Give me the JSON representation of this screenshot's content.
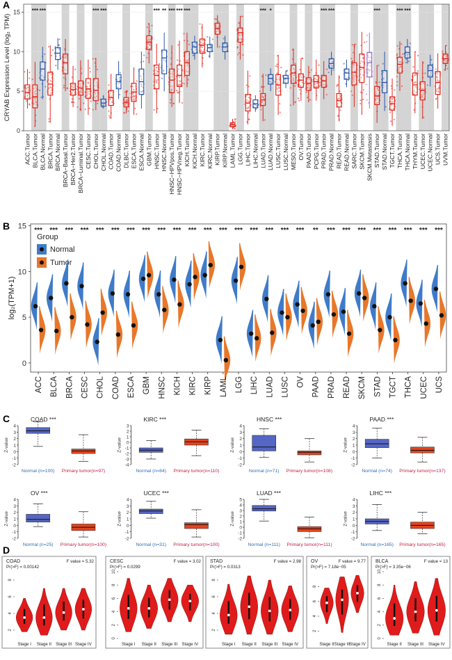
{
  "figure": {
    "panel_labels": [
      "A",
      "B",
      "C",
      "D"
    ]
  },
  "colors": {
    "normal_blue": "#2a56a8",
    "tumor_red": "#e0261b",
    "metastasis_purple": "#9a6fc4",
    "b_normal": "#3f7bc8",
    "b_tumor": "#e8772a",
    "c_normal": "#5566c4",
    "c_tumor": "#e4431f",
    "violin_red": "#e01b1b",
    "sig_text": "#222222",
    "grey_band": "#d4d4d4"
  },
  "chart_data": [
    {
      "panel": "A",
      "type": "box",
      "ylabel": "CRYAB Expression Level (log₂ TPM)",
      "ylim": [
        0,
        16
      ],
      "yticks": [
        0,
        5,
        10,
        15
      ],
      "categories": [
        "ACC.Tumor",
        "BLCA.Tumor",
        "BLCA.Normal",
        "BRCA.Tumor",
        "BRCA.Normal",
        "BRCA−Basal.Tumor",
        "BRCA−Her2.Tumor",
        "BRCA−Luminal.Tumor",
        "CESC.Tumor",
        "CHOL.Tumor",
        "CHOL.Normal",
        "COAD.Tumor",
        "COAD.Normal",
        "DLBC.Tumor",
        "ESCA.Tumor",
        "ESCA.Normal",
        "GBM.Tumor",
        "HNSC.Tumor",
        "HNSC.Normal",
        "HNSC−HPVpos.Tumor",
        "HNSC−HPVneg.Tumor",
        "KICH.Tumor",
        "KICH.Normal",
        "KIRC.Tumor",
        "KIRC.Normal",
        "KIRP.Tumor",
        "KIRP.Normal",
        "LAML.Tumor",
        "LGG.Tumor",
        "LIHC.Tumor",
        "LIHC.Normal",
        "LUAD.Tumor",
        "LUAD.Normal",
        "LUSC.Tumor",
        "LUSC.Normal",
        "MESO.Tumor",
        "OV.Tumor",
        "PAAD.Tumor",
        "PCPG.Tumor",
        "PRAD.Tumor",
        "PRAD.Normal",
        "READ.Tumor",
        "READ.Normal",
        "SARC.Tumor",
        "SKCM.Tumor",
        "SKCM.Metastasis",
        "STAD.Tumor",
        "STAD.Normal",
        "TGCT.Tumor",
        "THCA.Tumor",
        "THCA.Normal",
        "THYM.Tumor",
        "UCEC.Tumor",
        "UCEC.Normal",
        "UCS.Tumor",
        "UVM.Tumor"
      ],
      "group": [
        "t",
        "t",
        "n",
        "t",
        "n",
        "t",
        "t",
        "t",
        "t",
        "t",
        "n",
        "t",
        "n",
        "t",
        "t",
        "n",
        "t",
        "t",
        "n",
        "t",
        "t",
        "t",
        "n",
        "t",
        "n",
        "t",
        "n",
        "t",
        "t",
        "t",
        "n",
        "t",
        "n",
        "t",
        "n",
        "t",
        "t",
        "t",
        "t",
        "t",
        "n",
        "t",
        "n",
        "t",
        "t",
        "m",
        "t",
        "n",
        "t",
        "t",
        "n",
        "t",
        "t",
        "n",
        "t",
        "t"
      ],
      "medians": [
        4.8,
        4.3,
        7.8,
        5.9,
        9.8,
        8.6,
        5.2,
        5.4,
        5.3,
        5.1,
        3.5,
        4.2,
        6.2,
        3.6,
        4.9,
        6.2,
        11.2,
        7.0,
        9.2,
        6.4,
        7.0,
        8.6,
        10.6,
        10.8,
        10.5,
        12.9,
        10.6,
        0.8,
        12.4,
        3.5,
        3.4,
        3.9,
        6.6,
        5.8,
        6.6,
        7.3,
        6.4,
        6.0,
        6.2,
        6.3,
        8.5,
        3.8,
        7.3,
        7.4,
        8.0,
        8.6,
        4.4,
        6.1,
        3.4,
        8.4,
        9.9,
        5.8,
        5.1,
        7.6,
        6.1,
        9.1
      ],
      "q1": [
        4.0,
        2.9,
        6.4,
        4.5,
        9.0,
        7.2,
        4.5,
        4.5,
        4.1,
        3.8,
        3.1,
        3.2,
        5.3,
        3.0,
        3.7,
        4.6,
        10.3,
        5.3,
        7.2,
        4.8,
        5.6,
        7.0,
        9.8,
        9.8,
        10.0,
        12.2,
        10.0,
        0.5,
        11.2,
        2.5,
        2.9,
        3.2,
        5.9,
        4.5,
        6.0,
        6.0,
        5.5,
        5.1,
        5.4,
        5.5,
        7.9,
        3.0,
        6.5,
        5.8,
        6.1,
        6.8,
        3.3,
        4.8,
        2.6,
        7.3,
        9.2,
        4.5,
        3.9,
        6.8,
        4.6,
        8.5
      ],
      "q3": [
        5.8,
        5.8,
        8.7,
        7.4,
        10.5,
        9.7,
        6.0,
        6.3,
        6.6,
        6.6,
        4.0,
        5.1,
        7.1,
        4.2,
        6.0,
        7.8,
        12.0,
        8.3,
        10.2,
        7.8,
        8.3,
        10.0,
        11.2,
        11.6,
        10.9,
        13.6,
        11.1,
        1.0,
        13.0,
        4.6,
        3.9,
        4.7,
        7.1,
        7.1,
        7.0,
        8.3,
        7.2,
        6.7,
        7.0,
        7.0,
        9.1,
        4.7,
        7.8,
        8.6,
        9.7,
        9.9,
        5.6,
        7.6,
        4.3,
        9.3,
        10.6,
        7.3,
        6.2,
        8.3,
        7.5,
        9.7
      ],
      "lo": [
        2.8,
        0.5,
        4.0,
        1.0,
        7.7,
        5.0,
        3.0,
        2.5,
        2.0,
        2.6,
        2.8,
        1.5,
        4.0,
        2.2,
        2.0,
        2.8,
        8.5,
        2.2,
        5.0,
        3.0,
        3.5,
        5.5,
        9.0,
        8.0,
        9.2,
        10.5,
        9.0,
        0.2,
        9.0,
        0.8,
        2.4,
        1.2,
        5.0,
        2.0,
        5.4,
        3.2,
        3.8,
        3.6,
        3.8,
        4.0,
        7.0,
        1.2,
        5.5,
        3.0,
        2.0,
        2.8,
        1.0,
        2.5,
        0.6,
        5.0,
        8.5,
        2.2,
        1.5,
        5.6,
        2.8,
        7.6
      ],
      "hi": [
        7.8,
        8.7,
        10.6,
        10.8,
        11.7,
        11.6,
        8.2,
        8.9,
        9.0,
        9.2,
        4.5,
        7.2,
        8.8,
        5.1,
        8.0,
        10.0,
        13.6,
        11.0,
        12.4,
        10.8,
        11.4,
        12.4,
        12.0,
        13.5,
        11.9,
        14.6,
        12.0,
        1.5,
        14.5,
        7.6,
        4.5,
        7.2,
        7.9,
        9.6,
        7.6,
        10.4,
        9.2,
        8.2,
        9.0,
        8.8,
        10.0,
        7.0,
        9.0,
        11.0,
        12.5,
        12.4,
        8.3,
        10.0,
        6.6,
        11.3,
        11.6,
        10.0,
        8.8,
        9.6,
        9.8,
        10.8
      ],
      "significance": [
        "",
        "***",
        "***",
        "",
        "",
        "",
        "",
        "",
        "",
        "***",
        "***",
        "",
        "",
        "",
        "",
        "",
        "",
        "***",
        "**",
        "***",
        "***",
        "***",
        "",
        "",
        "",
        "",
        "",
        "",
        "",
        "",
        "",
        "***",
        "*",
        "",
        "",
        "",
        "",
        "",
        "",
        "***",
        "***",
        "",
        "",
        "",
        "",
        "",
        "***",
        "",
        "",
        "***",
        "***",
        "",
        "",
        "",
        "",
        ""
      ]
    },
    {
      "panel": "B",
      "type": "split-violin",
      "ylabel": "log₂(TPM+1)",
      "ylim": [
        -1,
        15.2
      ],
      "yticks": [
        0,
        5,
        10,
        15
      ],
      "legend_title": "Group",
      "legend": [
        "Normal",
        "Tumor"
      ],
      "categories": [
        "ACC",
        "BLCA",
        "BRCA",
        "CESC",
        "CHOL",
        "COAD",
        "ESCA",
        "GBM",
        "HNSC",
        "KICH",
        "KIRC",
        "KIRP",
        "LAML",
        "LGG",
        "LIHC",
        "LUAD",
        "LUSC",
        "OV",
        "PAAD",
        "PRAD",
        "READ",
        "SKCM",
        "STAD",
        "TGCT",
        "THCA",
        "UCEC",
        "UCS"
      ],
      "normal_mean": [
        6.2,
        7.1,
        8.7,
        8.4,
        2.3,
        7.6,
        7.5,
        9.2,
        7.5,
        9.1,
        8.6,
        9.6,
        2.5,
        9.0,
        3.2,
        7.0,
        5.5,
        6.4,
        4.1,
        7.5,
        5.6,
        7.6,
        6.2,
        5.0,
        8.7,
        6.5,
        8.1
      ],
      "tumor_mean": [
        3.6,
        3.5,
        5.0,
        4.2,
        5.5,
        3.1,
        4.1,
        9.6,
        5.8,
        6.4,
        9.4,
        10.7,
        0.3,
        10.5,
        2.7,
        3.3,
        5.0,
        5.7,
        4.5,
        5.3,
        3.2,
        7.1,
        3.6,
        2.5,
        6.8,
        4.3,
        5.2
      ],
      "significance": [
        "***",
        "***",
        "***",
        "***",
        "***",
        "***",
        "***",
        "***",
        "***",
        "***",
        "***",
        "***",
        "***",
        "***",
        "***",
        "***",
        "***",
        "***",
        "**",
        "***",
        "***",
        "***",
        "***",
        "***",
        "***",
        "***",
        "***"
      ]
    },
    {
      "panel": "C",
      "type": "box",
      "ylabel": "Z-value",
      "charts": [
        {
          "title": "COAD ***",
          "ylim": [
            -2,
            4
          ],
          "yticks": [
            -2,
            -1,
            0,
            1,
            2,
            3,
            4
          ],
          "groups": [
            "Normal (n=100)",
            "Primary tumor(n=97)"
          ],
          "boxes": [
            [
              0.8,
              2.8,
              3.2,
              3.7,
              4.6
            ],
            [
              -1.5,
              -0.3,
              0.1,
              0.4,
              2.6
            ]
          ]
        },
        {
          "title": "KIRC ***",
          "ylim": [
            -4,
            3
          ],
          "yticks": [
            -4,
            -3,
            -2,
            -1,
            0,
            1,
            2,
            3
          ],
          "groups": [
            "Normal (n=84)",
            "Primary tumor(n=110)"
          ],
          "boxes": [
            [
              -3.0,
              -1.8,
              -1.4,
              -1.0,
              0.3
            ],
            [
              -2.4,
              -0.5,
              0.1,
              0.6,
              2.2
            ]
          ]
        },
        {
          "title": "HNSC ***",
          "ylim": [
            -2,
            4
          ],
          "yticks": [
            -2,
            -1,
            0,
            1,
            2,
            3,
            4
          ],
          "groups": [
            "Normal (n=71)",
            "Primary tumor(n=108)"
          ],
          "boxes": [
            [
              -0.9,
              0.1,
              0.7,
              2.5,
              3.5
            ],
            [
              -1.6,
              -0.5,
              -0.1,
              0.1,
              2.0
            ]
          ]
        },
        {
          "title": "PAAD ***",
          "ylim": [
            -2,
            4
          ],
          "yticks": [
            -2,
            -1,
            0,
            1,
            2,
            3,
            4
          ],
          "groups": [
            "Normal (n=74)",
            "Primary tumor(n=137)"
          ],
          "boxes": [
            [
              -1.0,
              0.6,
              1.2,
              1.9,
              3.6
            ],
            [
              -1.6,
              -0.2,
              0.2,
              0.7,
              2.2
            ]
          ]
        },
        {
          "title": "OV ***",
          "ylim": [
            -2,
            4
          ],
          "yticks": [
            -2,
            -1,
            0,
            1,
            2,
            3,
            4
          ],
          "groups": [
            "Normal (n=25)",
            "Primary tumor(n=100)"
          ],
          "boxes": [
            [
              -0.2,
              0.5,
              0.9,
              1.7,
              3.3
            ],
            [
              -1.8,
              -0.8,
              -0.3,
              0.2,
              2.1
            ]
          ]
        },
        {
          "title": "UCEC ***",
          "ylim": [
            -2,
            4
          ],
          "yticks": [
            -2,
            -1,
            0,
            1,
            2,
            3,
            4
          ],
          "groups": [
            "Normal (n=31)",
            "Primary tumor(n=100)"
          ],
          "boxes": [
            [
              1.1,
              1.8,
              2.2,
              2.5,
              3.7
            ],
            [
              -1.8,
              -0.5,
              0.1,
              0.4,
              2.4
            ]
          ]
        },
        {
          "title": "LUAD ***",
          "ylim": [
            -2,
            5
          ],
          "yticks": [
            -2,
            -1,
            0,
            1,
            2,
            3,
            4,
            5
          ],
          "groups": [
            "Normal (n=111)",
            "Primary tumor(n=111)"
          ],
          "boxes": [
            [
              1.1,
              2.9,
              3.3,
              3.9,
              5.0
            ],
            [
              -1.9,
              -0.8,
              -0.3,
              0.1,
              1.8
            ]
          ]
        },
        {
          "title": "LIHC ***",
          "ylim": [
            -2,
            4
          ],
          "yticks": [
            -2,
            -1,
            0,
            1,
            2,
            3,
            4
          ],
          "groups": [
            "Normal (n=165)",
            "Primary tumor(n=165)"
          ],
          "boxes": [
            [
              -0.8,
              0.2,
              0.6,
              1.0,
              3.2
            ],
            [
              -1.3,
              -0.5,
              0.0,
              0.5,
              2.0
            ]
          ]
        }
      ]
    },
    {
      "panel": "D",
      "type": "violin",
      "charts": [
        {
          "title": "COAD",
          "pr": "Pr(>F) = 0.00142",
          "fvalue": "F value = 5.32",
          "ylim": [
            1,
            9
          ],
          "yticks": [
            2,
            4,
            6,
            8
          ],
          "stages": [
            "Stage I",
            "Stage II",
            "Stage III",
            "Stage IV"
          ],
          "medians": [
            3.5,
            3.5,
            4.1,
            4.5
          ],
          "lo": [
            1.8,
            1.4,
            2.0,
            2.0
          ],
          "hi": [
            5.8,
            7.0,
            7.0,
            7.0
          ]
        },
        {
          "title": "CESC",
          "pr": "Pr(>F) = 0.0299",
          "fvalue": "F value = 3.02",
          "ylim": [
            0,
            10
          ],
          "yticks": [
            0,
            2,
            4,
            6,
            8,
            10
          ],
          "stages": [
            "Stage I",
            "Stage II",
            "Stage III",
            "Stage IV"
          ],
          "medians": [
            4.5,
            4.5,
            5.8,
            5.6
          ],
          "lo": [
            1.0,
            1.5,
            2.5,
            2.5
          ],
          "hi": [
            9.0,
            8.0,
            9.0,
            8.0
          ]
        },
        {
          "title": "STAD",
          "pr": "Pr(>F) = 0.0313",
          "fvalue": "F value = 2.98",
          "ylim": [
            1,
            9
          ],
          "yticks": [
            2,
            4,
            6,
            8
          ],
          "stages": [
            "Stage I",
            "Stage II",
            "Stage III",
            "Stage IV"
          ],
          "medians": [
            3.8,
            4.8,
            4.3,
            4.4
          ],
          "lo": [
            1.5,
            1.5,
            1.5,
            1.8
          ],
          "hi": [
            7.5,
            8.5,
            8.0,
            7.3
          ]
        },
        {
          "title": "OV",
          "pr": "Pr(>F) = 7.18e−05",
          "fvalue": "F value = 9.77",
          "ylim": [
            1,
            10
          ],
          "yticks": [
            2,
            4,
            6,
            8
          ],
          "stages": [
            "Stage II",
            "Stage III",
            "Stage IV"
          ],
          "medians": [
            5.8,
            6.2,
            7.1
          ],
          "lo": [
            3.0,
            1.8,
            4.5
          ],
          "hi": [
            7.8,
            9.3,
            9.5
          ]
        },
        {
          "title": "BLCA",
          "pr": "Pr(>F) = 3.35e−06",
          "fvalue": "F value = 13",
          "ylim": [
            0,
            10
          ],
          "yticks": [
            0,
            2,
            4,
            6,
            8,
            10
          ],
          "stages": [
            "Stage II",
            "Stage III",
            "Stage IV"
          ],
          "medians": [
            3.0,
            4.0,
            4.2
          ],
          "lo": [
            0.5,
            0.8,
            0.5
          ],
          "hi": [
            8.0,
            8.5,
            9.0
          ]
        }
      ]
    }
  ]
}
